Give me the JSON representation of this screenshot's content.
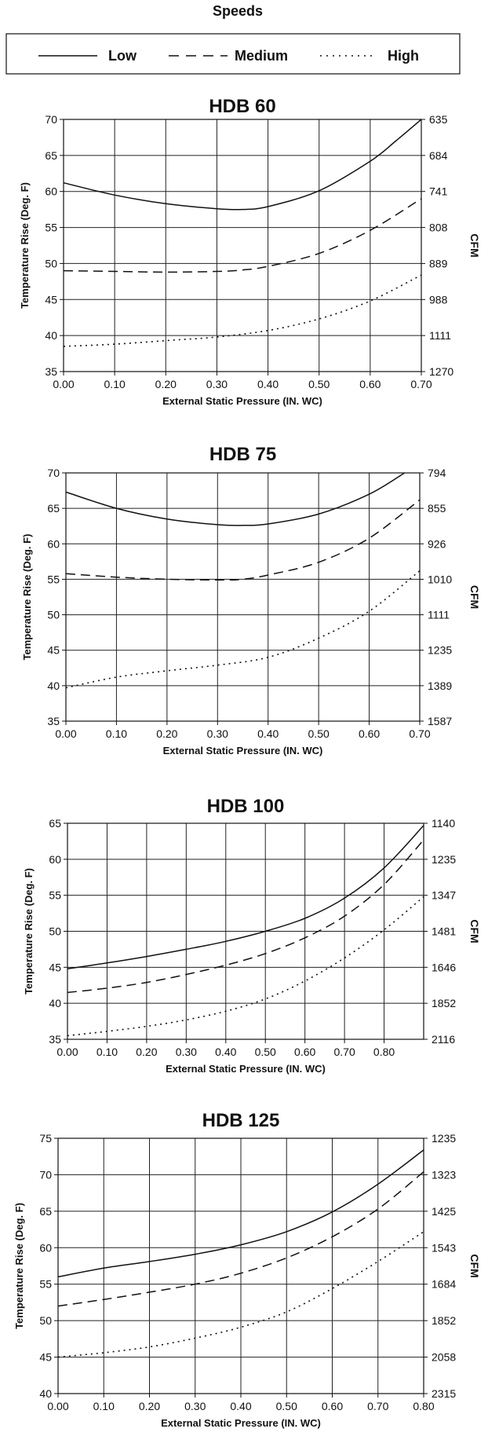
{
  "legend": {
    "heading": "Speeds",
    "items": [
      {
        "label": "Low",
        "style": "solid"
      },
      {
        "label": "Medium",
        "style": "dashed"
      },
      {
        "label": "High",
        "style": "dotted"
      }
    ]
  },
  "chart_data": [
    {
      "type": "line",
      "title": "HDB 60",
      "xlabel": "External Static Pressure (IN. WC)",
      "ylabel": "Temperature Rise (Deg. F)",
      "y2label": "CFM",
      "xlim": [
        0,
        0.7
      ],
      "ylim": [
        35,
        70
      ],
      "x_ticks": [
        "0.00",
        "0.10",
        "0.20",
        "0.30",
        "0.40",
        "0.50",
        "0.60",
        "0.70"
      ],
      "y_ticks": [
        "35",
        "40",
        "45",
        "50",
        "55",
        "60",
        "65",
        "70"
      ],
      "y2_ticks": [
        "1270",
        "1111",
        "988",
        "889",
        "808",
        "741",
        "684",
        "635"
      ],
      "grid": true,
      "series": [
        {
          "name": "Low",
          "style": "solid",
          "x": [
            0,
            0.1,
            0.2,
            0.3,
            0.35,
            0.4,
            0.5,
            0.6,
            0.65,
            0.7
          ],
          "y": [
            61.2,
            59.5,
            58.3,
            57.6,
            57.5,
            57.9,
            60.1,
            64.2,
            67.0,
            70.0
          ]
        },
        {
          "name": "Medium",
          "style": "dashed",
          "x": [
            0,
            0.1,
            0.2,
            0.3,
            0.35,
            0.4,
            0.5,
            0.6,
            0.7
          ],
          "y": [
            49.0,
            48.9,
            48.8,
            48.9,
            49.1,
            49.6,
            51.4,
            54.6,
            59.0
          ]
        },
        {
          "name": "High",
          "style": "dotted",
          "x": [
            0,
            0.1,
            0.2,
            0.3,
            0.4,
            0.5,
            0.6,
            0.7
          ],
          "y": [
            38.5,
            38.8,
            39.3,
            39.8,
            40.7,
            42.3,
            44.8,
            48.4
          ]
        }
      ]
    },
    {
      "type": "line",
      "title": "HDB 75",
      "xlabel": "External Static Pressure (IN. WC)",
      "ylabel": "Temperature Rise (Deg. F)",
      "y2label": "CFM",
      "xlim": [
        0,
        0.7
      ],
      "ylim": [
        35,
        70
      ],
      "x_ticks": [
        "0.00",
        "0.10",
        "0.20",
        "0.30",
        "0.40",
        "0.50",
        "0.60",
        "0.70"
      ],
      "y_ticks": [
        "35",
        "40",
        "45",
        "50",
        "55",
        "60",
        "65",
        "70"
      ],
      "y2_ticks": [
        "1587",
        "1389",
        "1235",
        "1111",
        "1010",
        "926",
        "855",
        "794"
      ],
      "grid": true,
      "series": [
        {
          "name": "Low",
          "style": "solid",
          "x": [
            0,
            0.1,
            0.2,
            0.3,
            0.35,
            0.4,
            0.5,
            0.6,
            0.67
          ],
          "y": [
            67.3,
            65.0,
            63.5,
            62.7,
            62.6,
            62.8,
            64.2,
            67.0,
            70.0
          ]
        },
        {
          "name": "Medium",
          "style": "dashed",
          "x": [
            0,
            0.1,
            0.2,
            0.3,
            0.35,
            0.4,
            0.5,
            0.6,
            0.7
          ],
          "y": [
            55.8,
            55.3,
            55.0,
            54.9,
            55.0,
            55.6,
            57.4,
            60.8,
            66.2
          ]
        },
        {
          "name": "High",
          "style": "dotted",
          "x": [
            0,
            0.1,
            0.2,
            0.3,
            0.4,
            0.5,
            0.6,
            0.7
          ],
          "y": [
            39.7,
            41.2,
            42.1,
            42.9,
            44.0,
            46.7,
            50.5,
            56.2
          ]
        }
      ]
    },
    {
      "type": "line",
      "title": "HDB 100",
      "xlabel": "External Static Pressure (IN. WC)",
      "ylabel": "Temperature Rise (Deg. F)",
      "y2label": "CFM",
      "xlim": [
        0,
        0.9
      ],
      "ylim": [
        35,
        65
      ],
      "x_ticks": [
        "0.00",
        "0.10",
        "0.20",
        "0.30",
        "0.40",
        "0.50",
        "0.60",
        "0.70",
        "0.80"
      ],
      "y_ticks": [
        "35",
        "40",
        "45",
        "50",
        "55",
        "60",
        "65"
      ],
      "y2_ticks": [
        "2116",
        "1852",
        "1646",
        "1481",
        "1347",
        "1235",
        "1140"
      ],
      "grid": true,
      "series": [
        {
          "name": "Low",
          "style": "solid",
          "x": [
            0,
            0.1,
            0.2,
            0.3,
            0.4,
            0.5,
            0.6,
            0.7,
            0.8,
            0.9
          ],
          "y": [
            44.8,
            45.6,
            46.5,
            47.5,
            48.6,
            50.0,
            51.8,
            54.6,
            58.8,
            64.7
          ]
        },
        {
          "name": "Medium",
          "style": "dashed",
          "x": [
            0,
            0.1,
            0.2,
            0.3,
            0.4,
            0.5,
            0.6,
            0.7,
            0.8,
            0.9
          ],
          "y": [
            41.5,
            42.1,
            42.9,
            44.0,
            45.3,
            46.9,
            49.1,
            52.1,
            56.5,
            62.7
          ]
        },
        {
          "name": "High",
          "style": "dotted",
          "x": [
            0,
            0.1,
            0.2,
            0.3,
            0.4,
            0.5,
            0.6,
            0.7,
            0.8,
            0.9
          ],
          "y": [
            35.5,
            36.1,
            36.8,
            37.7,
            38.9,
            40.6,
            43.1,
            46.3,
            50.2,
            54.8
          ]
        }
      ]
    },
    {
      "type": "line",
      "title": "HDB 125",
      "xlabel": "External Static Pressure (IN. WC)",
      "ylabel": "Temperature Rise (Deg. F)",
      "y2label": "CFM",
      "xlim": [
        0,
        0.8
      ],
      "ylim": [
        40,
        75
      ],
      "x_ticks": [
        "0.00",
        "0.10",
        "0.20",
        "0.30",
        "0.40",
        "0.50",
        "0.60",
        "0.70",
        "0.80"
      ],
      "y_ticks": [
        "40",
        "45",
        "50",
        "55",
        "60",
        "65",
        "70",
        "75"
      ],
      "y2_ticks": [
        "2315",
        "2058",
        "1852",
        "1684",
        "1543",
        "1425",
        "1323",
        "1235"
      ],
      "grid": true,
      "series": [
        {
          "name": "Low",
          "style": "solid",
          "x": [
            0,
            0.1,
            0.2,
            0.3,
            0.4,
            0.5,
            0.6,
            0.7,
            0.8
          ],
          "y": [
            56.0,
            57.2,
            58.1,
            59.1,
            60.4,
            62.2,
            64.9,
            68.7,
            73.4
          ]
        },
        {
          "name": "Medium",
          "style": "dashed",
          "x": [
            0,
            0.1,
            0.2,
            0.3,
            0.4,
            0.5,
            0.6,
            0.7,
            0.8
          ],
          "y": [
            52.0,
            52.9,
            53.9,
            55.0,
            56.5,
            58.6,
            61.5,
            65.3,
            70.4
          ]
        },
        {
          "name": "High",
          "style": "dotted",
          "x": [
            0,
            0.1,
            0.2,
            0.3,
            0.4,
            0.5,
            0.6,
            0.7,
            0.8
          ],
          "y": [
            45.0,
            45.6,
            46.4,
            47.6,
            49.1,
            51.2,
            54.4,
            58.1,
            62.2
          ]
        }
      ]
    }
  ]
}
